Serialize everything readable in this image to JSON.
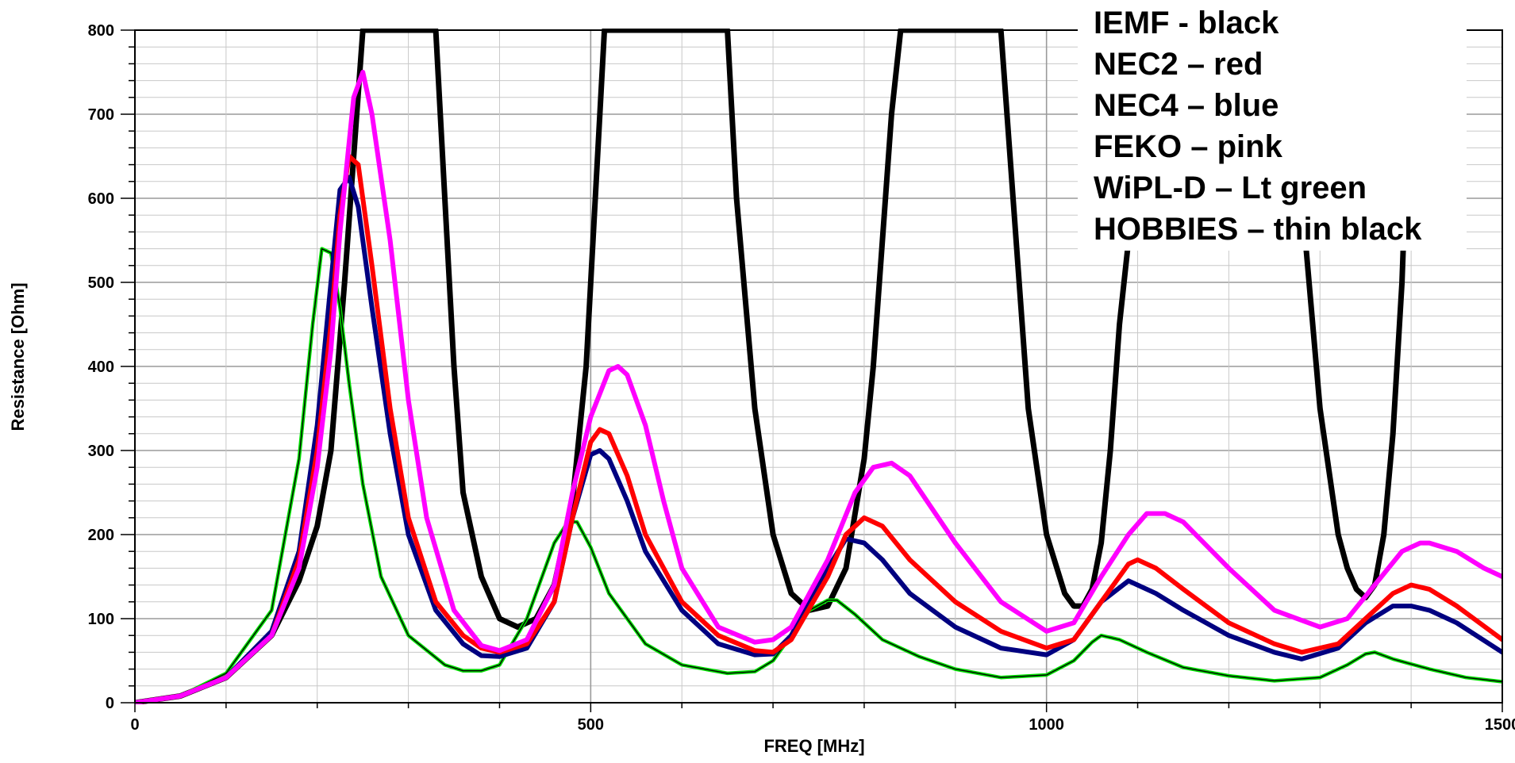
{
  "chart_data": {
    "type": "line",
    "xlabel": "FREQ [MHz]",
    "ylabel": "Resistance [Ohm]",
    "xlim": [
      0,
      1500
    ],
    "ylim": [
      0,
      800
    ],
    "x_ticks": [
      0,
      500,
      1000,
      1500
    ],
    "y_ticks": [
      0,
      100,
      200,
      300,
      400,
      500,
      600,
      700,
      800
    ],
    "grid": true,
    "legend_position": "top-right",
    "legend_entries": [
      "IEMF - black",
      "NEC2 – red",
      "NEC4 – blue",
      "FEKO – pink",
      "WiPL-D – Lt green",
      "HOBBIES – thin black"
    ],
    "colors": {
      "iemf": "#000000",
      "nec2": "#ff0000",
      "nec4": "#000080",
      "feko": "#ff00ff",
      "wipld": "#00e000",
      "hobbies": "#000000"
    },
    "series": [
      {
        "key": "iemf",
        "x": [
          0,
          50,
          100,
          150,
          180,
          200,
          215,
          230,
          240,
          250,
          255,
          330,
          340,
          350,
          360,
          380,
          400,
          420,
          440,
          460,
          480,
          495,
          505,
          515,
          525,
          535,
          540,
          650,
          660,
          680,
          700,
          720,
          740,
          760,
          780,
          800,
          810,
          820,
          830,
          840,
          950,
          960,
          980,
          1000,
          1020,
          1030,
          1040,
          1050,
          1060,
          1070,
          1080,
          1100,
          1130,
          1260,
          1280,
          1300,
          1320,
          1330,
          1340,
          1350,
          1360,
          1370,
          1380,
          1390,
          1400
        ],
        "y": [
          0,
          8,
          30,
          80,
          145,
          210,
          300,
          500,
          650,
          800,
          800,
          800,
          600,
          400,
          250,
          150,
          100,
          90,
          100,
          140,
          240,
          400,
          600,
          800,
          800,
          800,
          800,
          800,
          600,
          350,
          200,
          130,
          110,
          115,
          160,
          290,
          400,
          550,
          700,
          800,
          800,
          650,
          350,
          200,
          130,
          115,
          115,
          135,
          190,
          300,
          450,
          650,
          800,
          800,
          600,
          350,
          200,
          160,
          135,
          125,
          140,
          200,
          320,
          500,
          800
        ]
      },
      {
        "key": "nec2",
        "x": [
          0,
          50,
          100,
          150,
          180,
          200,
          215,
          225,
          235,
          245,
          260,
          280,
          300,
          330,
          360,
          380,
          400,
          430,
          460,
          480,
          500,
          510,
          520,
          540,
          560,
          600,
          640,
          680,
          700,
          720,
          760,
          780,
          800,
          820,
          850,
          900,
          950,
          1000,
          1030,
          1060,
          1090,
          1100,
          1120,
          1150,
          1200,
          1250,
          1280,
          1320,
          1350,
          1380,
          1400,
          1420,
          1450,
          1500
        ],
        "y": [
          0,
          8,
          30,
          80,
          170,
          300,
          450,
          580,
          650,
          640,
          520,
          350,
          220,
          120,
          80,
          65,
          60,
          70,
          120,
          220,
          310,
          325,
          320,
          270,
          200,
          120,
          80,
          62,
          60,
          75,
          150,
          200,
          220,
          210,
          170,
          120,
          85,
          65,
          75,
          120,
          165,
          170,
          160,
          135,
          95,
          70,
          60,
          70,
          100,
          130,
          140,
          135,
          115,
          75
        ]
      },
      {
        "key": "nec4",
        "x": [
          0,
          50,
          100,
          150,
          180,
          200,
          215,
          225,
          235,
          245,
          260,
          280,
          300,
          330,
          360,
          380,
          400,
          430,
          460,
          480,
          500,
          510,
          520,
          540,
          560,
          600,
          640,
          680,
          700,
          720,
          760,
          780,
          800,
          820,
          850,
          900,
          950,
          1000,
          1030,
          1060,
          1090,
          1100,
          1120,
          1150,
          1200,
          1250,
          1280,
          1320,
          1350,
          1380,
          1400,
          1420,
          1450,
          1500
        ],
        "y": [
          0,
          8,
          30,
          85,
          180,
          330,
          500,
          610,
          625,
          590,
          470,
          320,
          200,
          110,
          70,
          56,
          55,
          65,
          120,
          220,
          295,
          300,
          290,
          240,
          180,
          110,
          70,
          57,
          58,
          80,
          160,
          195,
          190,
          170,
          130,
          90,
          65,
          57,
          75,
          120,
          145,
          140,
          130,
          110,
          80,
          60,
          52,
          65,
          95,
          115,
          115,
          110,
          95,
          60
        ]
      },
      {
        "key": "feko",
        "x": [
          0,
          50,
          100,
          150,
          180,
          200,
          215,
          225,
          240,
          250,
          260,
          280,
          300,
          320,
          350,
          380,
          400,
          430,
          460,
          480,
          500,
          520,
          530,
          540,
          560,
          580,
          600,
          640,
          680,
          700,
          720,
          760,
          790,
          810,
          830,
          850,
          900,
          950,
          1000,
          1030,
          1060,
          1090,
          1110,
          1130,
          1150,
          1200,
          1250,
          1300,
          1330,
          1360,
          1390,
          1410,
          1420,
          1450,
          1480,
          1500
        ],
        "y": [
          0,
          8,
          30,
          80,
          160,
          280,
          420,
          560,
          720,
          750,
          700,
          550,
          360,
          220,
          110,
          68,
          62,
          75,
          140,
          250,
          340,
          395,
          400,
          390,
          330,
          240,
          160,
          90,
          72,
          75,
          90,
          170,
          250,
          280,
          285,
          270,
          190,
          120,
          85,
          95,
          150,
          200,
          225,
          225,
          215,
          160,
          110,
          90,
          100,
          140,
          180,
          190,
          190,
          180,
          160,
          150
        ]
      },
      {
        "key": "wipld",
        "x": [
          0,
          50,
          100,
          150,
          180,
          195,
          205,
          215,
          225,
          235,
          250,
          270,
          300,
          340,
          360,
          380,
          400,
          430,
          460,
          475,
          485,
          500,
          520,
          560,
          600,
          650,
          680,
          700,
          720,
          740,
          760,
          770,
          790,
          820,
          860,
          900,
          950,
          1000,
          1030,
          1050,
          1060,
          1080,
          1110,
          1150,
          1200,
          1250,
          1300,
          1330,
          1350,
          1360,
          1380,
          1420,
          1460,
          1500
        ],
        "y": [
          0,
          8,
          35,
          110,
          290,
          450,
          540,
          535,
          470,
          380,
          260,
          150,
          80,
          45,
          38,
          38,
          45,
          100,
          190,
          215,
          215,
          185,
          130,
          70,
          45,
          35,
          37,
          50,
          80,
          110,
          122,
          122,
          105,
          75,
          55,
          40,
          30,
          33,
          50,
          72,
          80,
          75,
          60,
          42,
          32,
          26,
          30,
          45,
          58,
          60,
          52,
          40,
          30,
          25
        ]
      },
      {
        "key": "hobbies",
        "x": [
          0,
          50,
          100,
          150,
          180,
          195,
          205,
          215,
          225,
          235,
          250,
          270,
          300,
          340,
          360,
          380,
          400,
          430,
          460,
          475,
          485,
          500,
          520,
          560,
          600,
          650,
          680,
          700,
          720,
          740,
          760,
          770,
          790,
          820,
          860,
          900,
          950,
          1000,
          1030,
          1050,
          1060,
          1080,
          1110,
          1150,
          1200,
          1250,
          1300,
          1330,
          1350,
          1360,
          1380,
          1420,
          1460,
          1500
        ],
        "y": [
          0,
          8,
          35,
          110,
          290,
          450,
          540,
          535,
          470,
          380,
          260,
          150,
          80,
          45,
          38,
          38,
          45,
          100,
          190,
          215,
          215,
          185,
          130,
          70,
          45,
          35,
          37,
          50,
          80,
          110,
          122,
          122,
          105,
          75,
          55,
          40,
          30,
          33,
          50,
          72,
          80,
          75,
          60,
          42,
          32,
          26,
          30,
          45,
          58,
          60,
          52,
          40,
          30,
          25
        ]
      }
    ]
  }
}
